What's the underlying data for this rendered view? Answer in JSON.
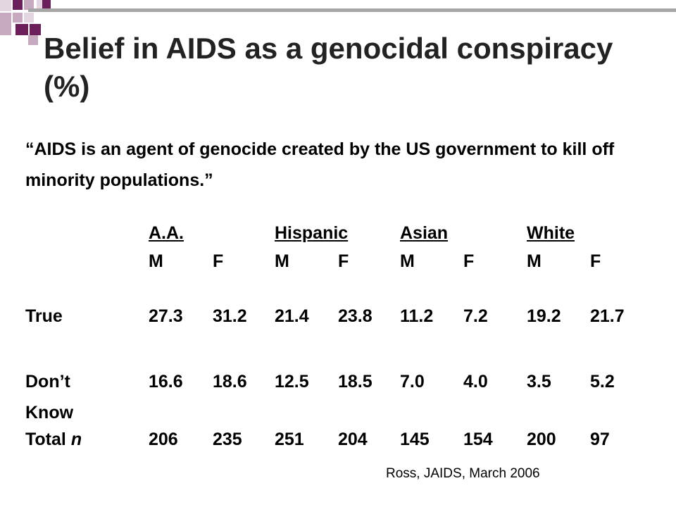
{
  "title": "Belief in AIDS as a genocidal conspiracy (%)",
  "quote": "“AIDS is an agent of genocide created by the US government to kill off minority populations.”",
  "table": {
    "group_headers": [
      "A.A.",
      "Hispanic",
      "Asian",
      "White"
    ],
    "sub_headers": [
      "M",
      "F",
      "M",
      "F",
      "M",
      "F",
      "M",
      "F"
    ],
    "rows": [
      {
        "label": "True",
        "values": [
          "27.3",
          "31.2",
          "21.4",
          "23.8",
          "11.2",
          "7.2",
          "19.2",
          "21.7"
        ]
      },
      {
        "label": "Don’t Know",
        "values": [
          "16.6",
          "18.6",
          "12.5",
          "18.5",
          "7.0",
          "4.0",
          "3.5",
          "5.2"
        ]
      },
      {
        "label_prefix": "Total ",
        "label_italic": "n",
        "values": [
          "206",
          "235",
          "251",
          "204",
          "145",
          "154",
          "200",
          "97"
        ]
      }
    ]
  },
  "citation": "Ross, JAIDS, March 2006",
  "colors": {
    "square_purple": "#6b1f5a",
    "square_pink": "#c7aac0",
    "square_light": "#e3d6e0",
    "rule_gray": "#a6a6a6"
  }
}
